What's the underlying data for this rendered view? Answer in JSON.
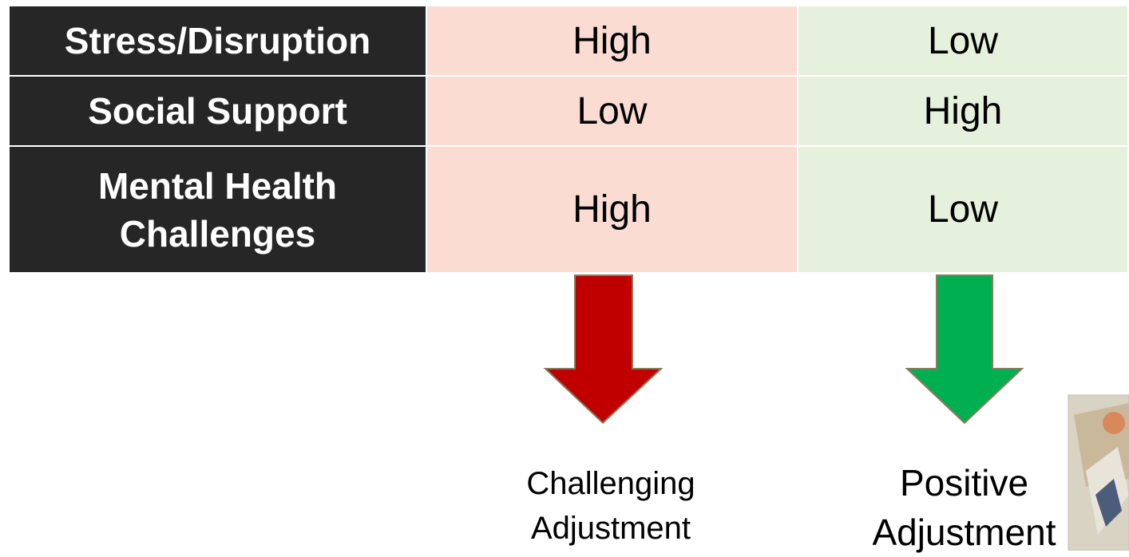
{
  "table": {
    "rows": [
      {
        "label": "Stress/Disruption",
        "values": [
          "High",
          "Low"
        ]
      },
      {
        "label": "Social Support",
        "values": [
          "Low",
          "High"
        ]
      },
      {
        "label": "Mental Health Challenges",
        "values": [
          "High",
          "Low"
        ]
      }
    ]
  },
  "outcomes": [
    "Challenging Adjustment",
    "Positive Adjustment"
  ]
}
